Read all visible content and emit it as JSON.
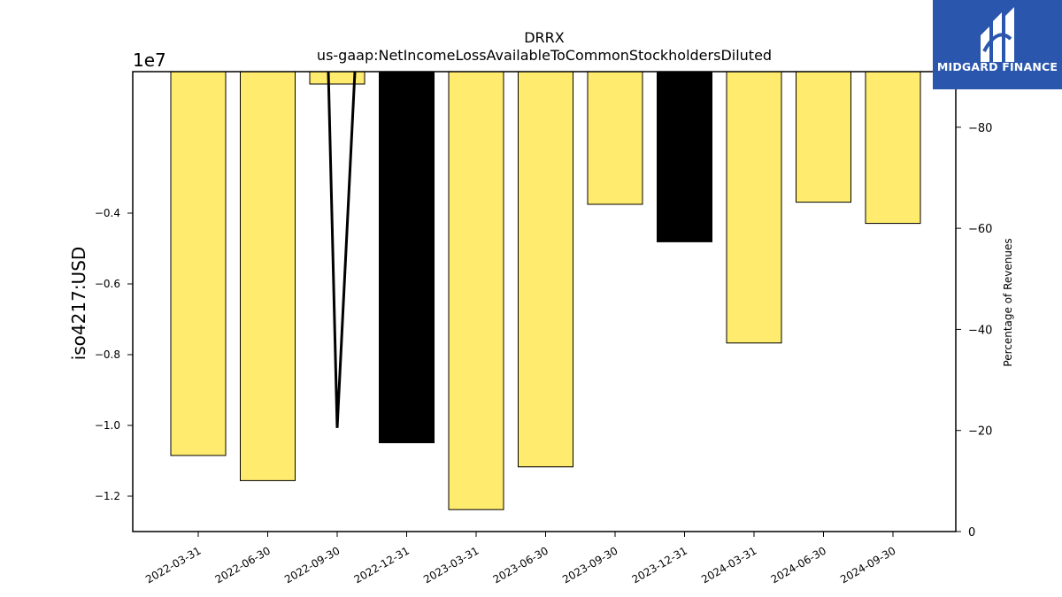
{
  "logo": {
    "text": "MIDGARD FINANCE",
    "bg_color": "#2a56ad"
  },
  "chart_data": {
    "type": "bar",
    "title": "DRRX",
    "subtitle": "us-gaap:NetIncomeLossAvailableToCommonStockholdersDiluted",
    "ylabel": "iso4217:USD",
    "y2label": "Percentage of Revenues",
    "y_scale_label": "1e7",
    "categories": [
      "2022-03-31",
      "2022-06-30",
      "2022-09-30",
      "2022-12-31",
      "2023-03-31",
      "2023-06-30",
      "2023-09-30",
      "2023-12-31",
      "2024-03-31",
      "2024-06-30",
      "2024-09-30"
    ],
    "values": [
      -10850000,
      -11560000,
      -350000,
      -10490000,
      -12380000,
      -11170000,
      -3750000,
      -4810000,
      -7670000,
      -3690000,
      -4290000
    ],
    "bar_colors": [
      "#ffec6e",
      "#ffec6e",
      "#ffec6e",
      "#000000",
      "#ffec6e",
      "#ffec6e",
      "#ffec6e",
      "#000000",
      "#ffec6e",
      "#ffec6e",
      "#ffec6e"
    ],
    "ylim": [
      -13000000,
      0
    ],
    "y_ticks": [
      -0.4,
      -0.6,
      -0.8,
      -1.0,
      -1.2
    ],
    "y_tick_multiplier": 10000000,
    "y2lim": [
      0,
      -91
    ],
    "y2_ticks": [
      -80,
      -60,
      -40,
      -20,
      0
    ],
    "line_series": {
      "x": [
        "2022-09-30",
        "2022-09-30",
        "2022-09-30"
      ],
      "values": [
        -91,
        -20.5,
        -91
      ]
    },
    "grid": false,
    "legend": "none"
  }
}
